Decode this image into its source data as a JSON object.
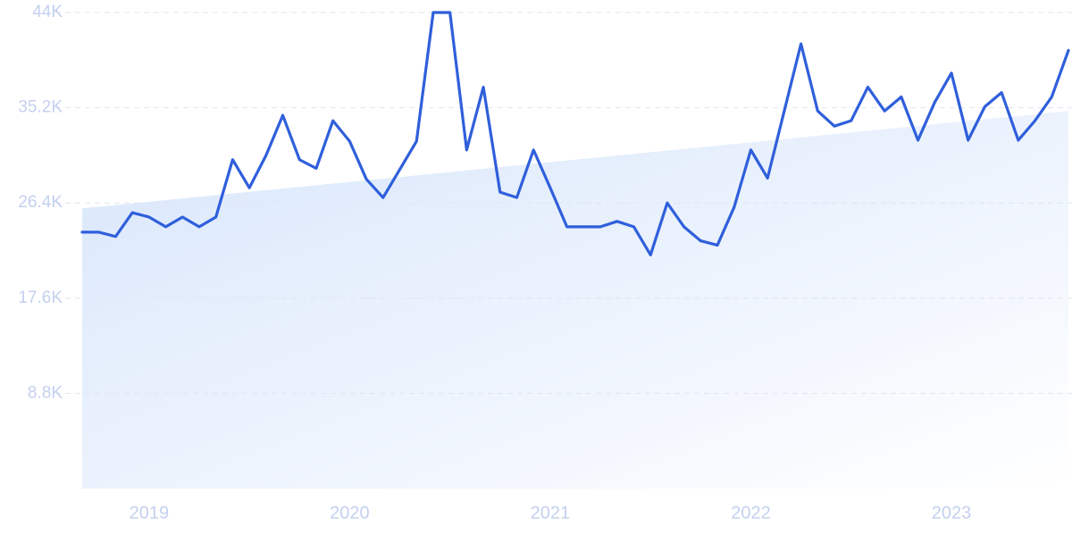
{
  "chart_data": {
    "type": "line",
    "categories": [
      null,
      null,
      null,
      null,
      "2019",
      null,
      null,
      null,
      null,
      null,
      null,
      null,
      null,
      null,
      null,
      null,
      "2020",
      null,
      null,
      null,
      null,
      null,
      null,
      null,
      null,
      null,
      null,
      null,
      "2021",
      null,
      null,
      null,
      null,
      null,
      null,
      null,
      null,
      null,
      null,
      null,
      "2022",
      null,
      null,
      null,
      null,
      null,
      null,
      null,
      null,
      null,
      null,
      null,
      "2023",
      null,
      null,
      null,
      null,
      null,
      null,
      null
    ],
    "series": [
      {
        "color": "#2f5fdb",
        "values": [
          23700,
          23700,
          23300,
          25500,
          25100,
          24200,
          25100,
          24200,
          25100,
          30400,
          27800,
          30800,
          34500,
          30400,
          29600,
          34000,
          32100,
          28600,
          26900,
          29500,
          32100,
          44000,
          44000,
          31300,
          37100,
          27400,
          26900,
          31300,
          27800,
          24200,
          24200,
          24200,
          24700,
          24200,
          21600,
          26400,
          24200,
          22900,
          22500,
          26000,
          31300,
          28700,
          34900,
          41100,
          34900,
          33500,
          34000,
          37100,
          34900,
          36200,
          32200,
          35700,
          38400,
          32200,
          35300,
          36600,
          32200,
          34000,
          36200,
          40500
        ]
      }
    ],
    "trend_values": [
      25900,
      34900
    ],
    "ylim": [
      0,
      44000
    ],
    "yticks": [
      {
        "value": 8800,
        "label": "8.8K"
      },
      {
        "value": 17600,
        "label": "17.6K"
      },
      {
        "value": 26400,
        "label": "26.4K"
      },
      {
        "value": 35200,
        "label": "35.2K"
      },
      {
        "value": 44000,
        "label": "44K"
      }
    ],
    "grid": true
  }
}
